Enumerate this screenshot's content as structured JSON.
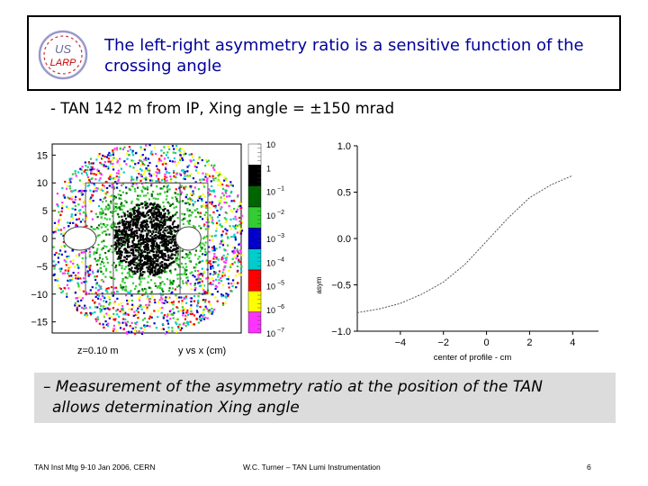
{
  "slide": {
    "title": "The left-right asymmetry ratio is a sensitive function of the crossing angle",
    "title_line1": "The left-right asymmetry ratio is a sensitive function of the",
    "title_line2": "crossing angle",
    "bullet": "- TAN 142 m from IP, Xing angle = ±150 mrad",
    "note_line1": "– Measurement of the asymmetry ratio at the position of the TAN",
    "note_line2": "allows determination Xing angle"
  },
  "logo": {
    "top_text": "US",
    "bottom_text": "LARP"
  },
  "footer": {
    "left": "TAN Inst Mtg 9-10 Jan 2006, CERN",
    "center": "W.C. Turner – TAN Lumi Instrumentation",
    "page": "6"
  },
  "colors": {
    "title": "#000099",
    "curve": "#555555",
    "palette": [
      "#000000",
      "#006600",
      "#33cc33",
      "#0000cc",
      "#00cccc",
      "#ff0000",
      "#ffff00",
      "#ff33ff",
      "#ffffff"
    ]
  },
  "chart_data": [
    {
      "type": "heatmap",
      "caption_left": "z=0.10 m",
      "caption_right": "y vs x (cm)",
      "y_ticks": [
        "15",
        "10",
        "5",
        "0",
        "−5",
        "−10",
        "−15"
      ],
      "ylim": [
        -17,
        17
      ],
      "colorbar_labels": [
        "10",
        "1",
        "10",
        "10",
        "10",
        "10",
        "10",
        "10",
        "10"
      ],
      "colorbar_exponents": [
        "",
        "",
        "−1",
        "−2",
        "−3",
        "−4",
        "−5",
        "−6",
        "−7"
      ],
      "central_blob_center": [
        0,
        0
      ],
      "holes_at_x": [
        -12,
        7.5
      ]
    },
    {
      "type": "line",
      "xlabel": "center of profile - cm",
      "ylabel": "asym",
      "xlim": [
        -6,
        5.2
      ],
      "ylim": [
        -1.0,
        1.0
      ],
      "x_ticks": [
        "−4",
        "−2",
        "0",
        "2",
        "4"
      ],
      "y_ticks": [
        "1.0",
        "0.5",
        "0.0",
        "−0.5",
        "−1.0"
      ],
      "x": [
        -6,
        -5,
        -4,
        -3,
        -2,
        -1,
        0,
        1,
        2,
        3,
        4
      ],
      "y": [
        -0.8,
        -0.76,
        -0.7,
        -0.6,
        -0.47,
        -0.28,
        -0.03,
        0.22,
        0.44,
        0.58,
        0.68
      ],
      "grid": false
    }
  ]
}
